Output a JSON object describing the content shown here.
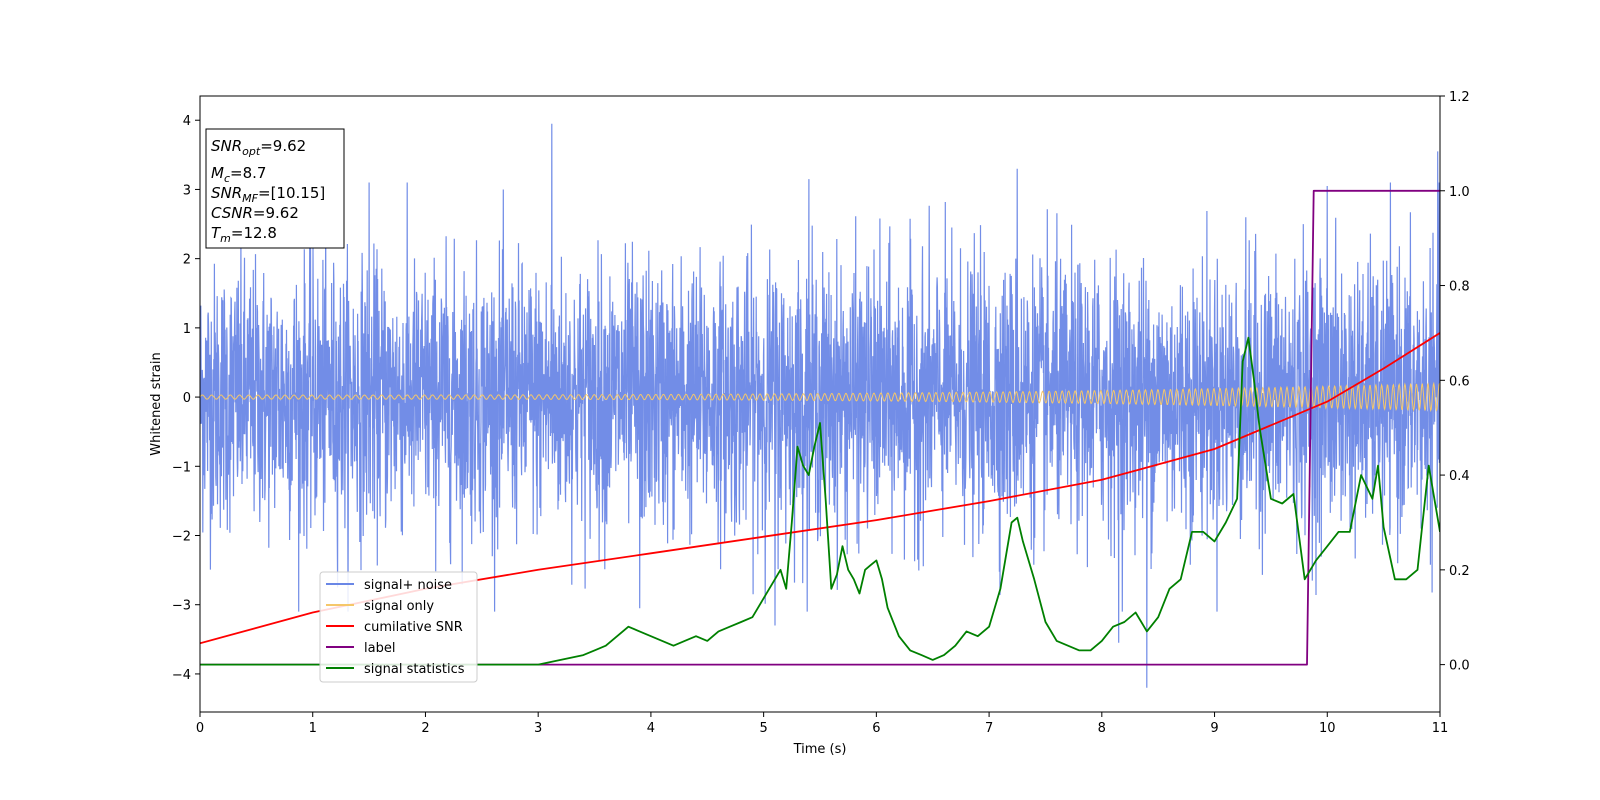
{
  "chart_data": {
    "type": "line",
    "xlabel": "Time (s)",
    "ylabel": "Whitened strain",
    "xlim": [
      0,
      11
    ],
    "ylim": [
      -4.55,
      4.35
    ],
    "y2lim": [
      -0.1,
      1.2
    ],
    "x_ticks": [
      "0",
      "1",
      "2",
      "3",
      "4",
      "5",
      "6",
      "7",
      "8",
      "9",
      "10",
      "11"
    ],
    "y_ticks": [
      "4",
      "3",
      "2",
      "1",
      "0",
      "−1",
      "−2",
      "−3",
      "−4"
    ],
    "y2_ticks": [
      "0.0",
      "0.2",
      "0.4",
      "0.6",
      "0.8",
      "1.0",
      "1.2"
    ],
    "grid": false,
    "legend_position": "lower-left",
    "legend": [
      {
        "label": "signal+ noise",
        "color": "#6a87e6"
      },
      {
        "label": "signal only",
        "color": "#f5c76a"
      },
      {
        "label": "cumilative SNR",
        "color": "#ff0000"
      },
      {
        "label": "label",
        "color": "#800080"
      },
      {
        "label": "signal statistics",
        "color": "#008000"
      }
    ],
    "annotation": {
      "lines": [
        {
          "main": "SNR",
          "sub": "opt",
          "rest": "=9.62"
        },
        {
          "main": "M",
          "sub": "c",
          "rest": "=8.7"
        },
        {
          "main": "SNR",
          "sub": "MF",
          "rest": "=[10.15]"
        },
        {
          "main": "CSNR",
          "sub": "",
          "rest": "=9.62"
        },
        {
          "main": "T",
          "sub": "m",
          "rest": "=12.8"
        }
      ]
    },
    "series": [
      {
        "name": "signal+ noise",
        "axis": "left",
        "color": "#6a87e6",
        "noise_std": 0.95,
        "peaks": [
          {
            "x": 3.12,
            "y": 3.95
          },
          {
            "x": 10.0,
            "y": 3.05
          },
          {
            "x": 10.98,
            "y": 3.55
          },
          {
            "x": 7.25,
            "y": 3.3
          },
          {
            "x": 5.4,
            "y": 3.15
          },
          {
            "x": 1.5,
            "y": 3.1
          },
          {
            "x": 8.4,
            "y": -4.2
          },
          {
            "x": 8.15,
            "y": -3.55
          },
          {
            "x": 5.1,
            "y": -3.3
          },
          {
            "x": 10.0,
            "y": -3.15
          },
          {
            "x": 3.9,
            "y": -3.05
          }
        ]
      },
      {
        "name": "signal only",
        "axis": "left",
        "color": "#f5c76a",
        "amplitude_start": 0.03,
        "amplitude_end": 0.2
      },
      {
        "name": "cumilative SNR",
        "axis": "right",
        "color": "#ff0000",
        "x": [
          0,
          1,
          2,
          3,
          4,
          5,
          6,
          7,
          8,
          9,
          10,
          10.5,
          11
        ],
        "y": [
          0.045,
          0.11,
          0.16,
          0.2,
          0.235,
          0.27,
          0.305,
          0.345,
          0.39,
          0.455,
          0.555,
          0.625,
          0.7
        ]
      },
      {
        "name": "label",
        "axis": "right",
        "color": "#800080",
        "x": [
          0,
          9.82,
          9.88,
          11
        ],
        "y": [
          0.0,
          0.0,
          1.0,
          1.0
        ]
      },
      {
        "name": "signal statistics",
        "axis": "right",
        "color": "#008000",
        "x": [
          0,
          0.5,
          1.0,
          1.5,
          2.0,
          2.5,
          3.0,
          3.2,
          3.4,
          3.5,
          3.6,
          3.7,
          3.8,
          3.9,
          4.0,
          4.1,
          4.2,
          4.3,
          4.4,
          4.5,
          4.6,
          4.7,
          4.8,
          4.9,
          5.0,
          5.1,
          5.15,
          5.2,
          5.25,
          5.3,
          5.35,
          5.4,
          5.45,
          5.5,
          5.55,
          5.6,
          5.65,
          5.7,
          5.75,
          5.8,
          5.85,
          5.9,
          5.95,
          6.0,
          6.05,
          6.1,
          6.2,
          6.3,
          6.4,
          6.5,
          6.6,
          6.7,
          6.8,
          6.9,
          7.0,
          7.1,
          7.2,
          7.25,
          7.3,
          7.4,
          7.5,
          7.6,
          7.7,
          7.8,
          7.9,
          8.0,
          8.1,
          8.2,
          8.3,
          8.4,
          8.5,
          8.6,
          8.7,
          8.8,
          8.9,
          9.0,
          9.1,
          9.2,
          9.25,
          9.3,
          9.35,
          9.4,
          9.5,
          9.6,
          9.7,
          9.8,
          9.85,
          9.9,
          10.0,
          10.1,
          10.2,
          10.3,
          10.4,
          10.45,
          10.5,
          10.6,
          10.7,
          10.8,
          10.9,
          11.0
        ],
        "y": [
          0.0,
          0.0,
          0.0,
          0.0,
          0.0,
          0.0,
          0.0,
          0.01,
          0.02,
          0.03,
          0.04,
          0.06,
          0.08,
          0.07,
          0.06,
          0.05,
          0.04,
          0.05,
          0.06,
          0.05,
          0.07,
          0.08,
          0.09,
          0.1,
          0.14,
          0.18,
          0.2,
          0.16,
          0.3,
          0.46,
          0.42,
          0.4,
          0.46,
          0.51,
          0.35,
          0.16,
          0.19,
          0.25,
          0.2,
          0.18,
          0.15,
          0.2,
          0.21,
          0.22,
          0.18,
          0.12,
          0.06,
          0.03,
          0.02,
          0.01,
          0.02,
          0.04,
          0.07,
          0.06,
          0.08,
          0.16,
          0.3,
          0.31,
          0.26,
          0.18,
          0.09,
          0.05,
          0.04,
          0.03,
          0.03,
          0.05,
          0.08,
          0.09,
          0.11,
          0.07,
          0.1,
          0.16,
          0.18,
          0.28,
          0.28,
          0.26,
          0.3,
          0.35,
          0.64,
          0.69,
          0.6,
          0.5,
          0.35,
          0.34,
          0.36,
          0.18,
          0.2,
          0.22,
          0.25,
          0.28,
          0.28,
          0.4,
          0.35,
          0.42,
          0.29,
          0.18,
          0.18,
          0.2,
          0.42,
          0.28
        ]
      }
    ]
  }
}
